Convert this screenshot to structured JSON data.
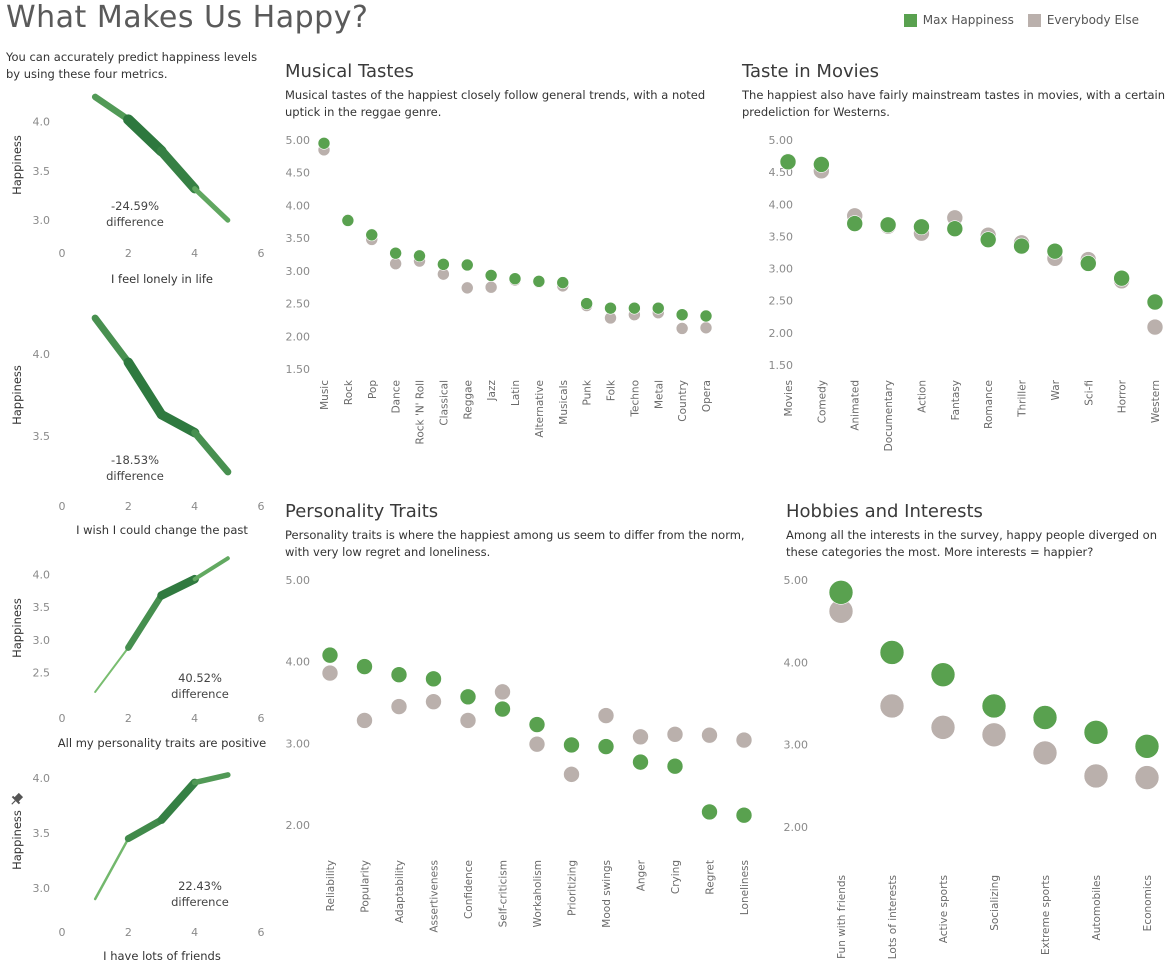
{
  "header": {
    "title": "What Makes Us Happy?",
    "intro": "You can accurately predict happiness levels by using these four metrics."
  },
  "legend": [
    {
      "label": "Max Happiness",
      "color": "#59a14f"
    },
    {
      "label": "Everybody Else",
      "color": "#bab0ac"
    }
  ],
  "colors": {
    "max": "#59a14f",
    "else": "#bab0ac",
    "dark_green": "#1f6b35",
    "light_green": "#8fd27f"
  },
  "panels": {
    "music": {
      "title": "Musical Tastes",
      "desc": "Musical tastes of the happiest closely follow general trends, with a noted uptick in the reggae genre."
    },
    "movies": {
      "title": "Taste in Movies",
      "desc": "The happiest also have fairly mainstream tastes in movies, with a certain predeliction for Westerns."
    },
    "personality": {
      "title": "Personality Traits",
      "desc": "Personality traits is where the happiest among us seem to differ from the norm, with very low regret and loneliness."
    },
    "hobbies": {
      "title": "Hobbies and Interests",
      "desc": "Among all the interests in the survey, happy people diverged on these categories the most. More interests = happier?"
    }
  },
  "chart_data": [
    {
      "id": "lonely",
      "type": "line",
      "title": "",
      "xlabel": "I feel lonely in life",
      "ylabel": "Happiness",
      "x": [
        1,
        2,
        3,
        4,
        5
      ],
      "values": [
        4.25,
        4.02,
        3.7,
        3.32,
        3.0
      ],
      "xlim": [
        0,
        6
      ],
      "xticks": [
        0,
        2,
        4,
        6
      ],
      "ylim": [
        2.85,
        4.32
      ],
      "yticks": [
        "3.0",
        "3.5",
        "4.0"
      ],
      "annotation": [
        "-24.59%",
        "difference"
      ]
    },
    {
      "id": "past",
      "type": "line",
      "title": "",
      "xlabel": "I wish I could change the past",
      "ylabel": "Happiness",
      "x": [
        1,
        2,
        3,
        4,
        5
      ],
      "values": [
        4.22,
        3.95,
        3.63,
        3.52,
        3.28
      ],
      "xlim": [
        0,
        6
      ],
      "xticks": [
        0,
        2,
        4,
        6
      ],
      "ylim": [
        3.2,
        4.3
      ],
      "yticks": [
        "3.5",
        "4.0"
      ],
      "annotation": [
        "-18.53%",
        "difference"
      ]
    },
    {
      "id": "personality_positive",
      "type": "line",
      "title": "",
      "xlabel": "All my personality traits are positive",
      "ylabel": "Happiness",
      "x": [
        1,
        2,
        3,
        4,
        5
      ],
      "values": [
        2.2,
        2.88,
        3.68,
        3.93,
        4.25
      ],
      "xlim": [
        0,
        6
      ],
      "xticks": [
        0,
        2,
        4,
        6
      ],
      "ylim": [
        2.0,
        4.3
      ],
      "yticks": [
        "2.5",
        "3.0",
        "3.5",
        "4.0"
      ],
      "annotation": [
        "40.52%",
        "difference"
      ]
    },
    {
      "id": "friends",
      "type": "line",
      "title": "",
      "xlabel": "I have lots of friends",
      "ylabel": "Happiness",
      "x": [
        1,
        2,
        3,
        4,
        5
      ],
      "values": [
        2.9,
        3.45,
        3.62,
        3.96,
        4.03
      ],
      "xlim": [
        0,
        6
      ],
      "xticks": [
        0,
        2,
        4,
        6
      ],
      "ylim": [
        2.8,
        4.12
      ],
      "yticks": [
        "3.0",
        "3.5",
        "4.0"
      ],
      "annotation": [
        "22.43%",
        "difference"
      ]
    },
    {
      "id": "music",
      "type": "scatter",
      "title": "Musical Tastes",
      "xlabel": "",
      "ylabel": "",
      "categories": [
        "Music",
        "Rock",
        "Pop",
        "Dance",
        "Rock 'N' Roll",
        "Classical",
        "Reggae",
        "Jazz",
        "Latin",
        "Alternative",
        "Musicals",
        "Punk",
        "Folk",
        "Techno",
        "Metal",
        "Country",
        "Opera"
      ],
      "series": [
        {
          "name": "Max Happiness",
          "values": [
            4.95,
            3.77,
            3.55,
            3.27,
            3.23,
            3.1,
            3.09,
            2.93,
            2.88,
            2.84,
            2.82,
            2.5,
            2.43,
            2.43,
            2.43,
            2.33,
            2.31
          ]
        },
        {
          "name": "Everybody Else",
          "values": [
            4.85,
            3.78,
            3.48,
            3.11,
            3.15,
            2.95,
            2.74,
            2.75,
            2.86,
            2.83,
            2.77,
            2.47,
            2.28,
            2.33,
            2.36,
            2.12,
            2.13
          ]
        }
      ],
      "ylim": [
        1.4,
        5.05
      ],
      "yticks": [
        "1.50",
        "2.00",
        "2.50",
        "3.00",
        "3.50",
        "4.00",
        "4.50",
        "5.00"
      ]
    },
    {
      "id": "movies",
      "type": "scatter",
      "title": "Taste in Movies",
      "xlabel": "",
      "ylabel": "",
      "categories": [
        "Movies",
        "Comedy",
        "Animated",
        "Documentary",
        "Action",
        "Fantasy",
        "Romance",
        "Thriller",
        "War",
        "Sci-fi",
        "Horror",
        "Western"
      ],
      "series": [
        {
          "name": "Max Happiness",
          "values": [
            4.66,
            4.62,
            3.7,
            3.68,
            3.65,
            3.62,
            3.45,
            3.35,
            3.27,
            3.08,
            2.85,
            2.48
          ]
        },
        {
          "name": "Everybody Else",
          "values": [
            4.67,
            4.52,
            3.82,
            3.66,
            3.55,
            3.79,
            3.52,
            3.4,
            3.16,
            3.14,
            2.81,
            2.09
          ]
        }
      ],
      "ylim": [
        1.4,
        5.05
      ],
      "yticks": [
        "1.50",
        "2.00",
        "2.50",
        "3.00",
        "3.50",
        "4.00",
        "4.50",
        "5.00"
      ]
    },
    {
      "id": "personality",
      "type": "scatter",
      "title": "Personality Traits",
      "xlabel": "",
      "ylabel": "",
      "categories": [
        "Reliability",
        "Popularity",
        "Adaptability",
        "Assertiveness",
        "Confidence",
        "Self-criticism",
        "Workaholism",
        "Prioritizing",
        "Mood swings",
        "Anger",
        "Crying",
        "Regret",
        "Loneliness"
      ],
      "series": [
        {
          "name": "Max Happiness",
          "values": [
            4.08,
            3.94,
            3.84,
            3.79,
            3.57,
            3.42,
            3.23,
            2.98,
            2.96,
            2.77,
            2.72,
            2.16,
            2.12
          ]
        },
        {
          "name": "Everybody Else",
          "values": [
            3.86,
            3.28,
            3.45,
            3.51,
            3.28,
            3.63,
            2.99,
            2.62,
            3.34,
            3.08,
            3.11,
            3.1,
            3.04
          ]
        }
      ],
      "ylim": [
        1.7,
        5.05
      ],
      "yticks": [
        "2.00",
        "3.00",
        "4.00",
        "5.00"
      ]
    },
    {
      "id": "hobbies",
      "type": "scatter",
      "title": "Hobbies and Interests",
      "xlabel": "",
      "ylabel": "",
      "categories": [
        "Fun with friends",
        "Lots of interests",
        "Active sports",
        "Socializing",
        "Extreme sports",
        "Automobiles",
        "Economics"
      ],
      "series": [
        {
          "name": "Max Happiness",
          "values": [
            4.85,
            4.12,
            3.85,
            3.47,
            3.33,
            3.15,
            2.98
          ]
        },
        {
          "name": "Everybody Else",
          "values": [
            4.62,
            3.47,
            3.21,
            3.12,
            2.9,
            2.62,
            2.6
          ]
        }
      ],
      "ylim": [
        1.7,
        5.05
      ],
      "yticks": [
        "2.00",
        "3.00",
        "4.00",
        "5.00"
      ]
    }
  ]
}
